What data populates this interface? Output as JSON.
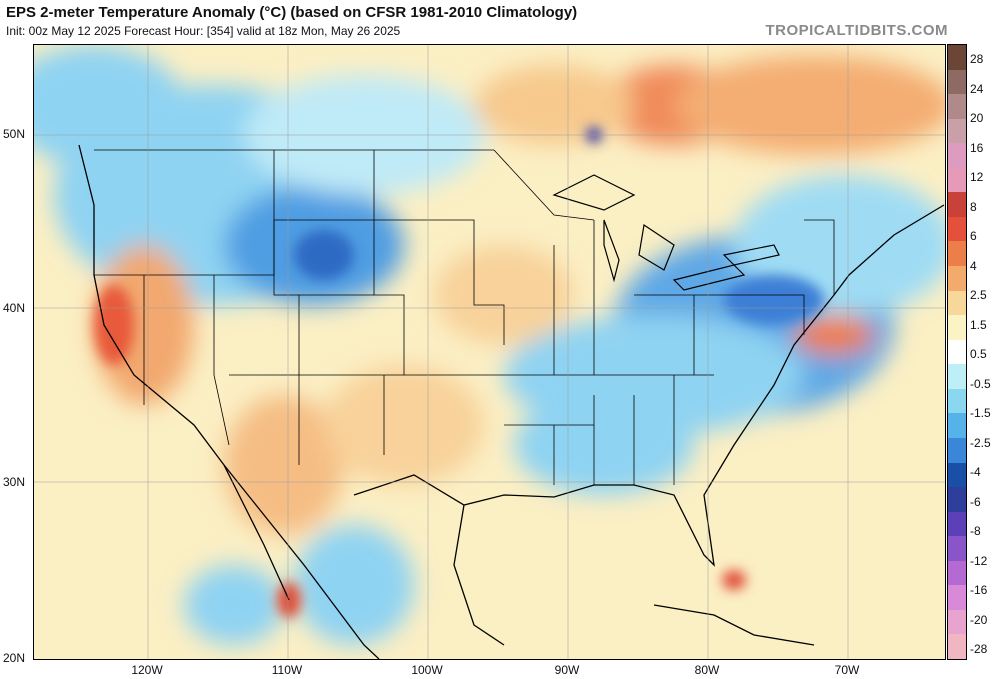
{
  "header": {
    "title": "EPS 2-meter Temperature Anomaly (°C) (based on CFSR 1981-2010 Climatology)",
    "subtitle": "Init: 00z May 12 2025   Forecast Hour: [354]   valid at 18z Mon, May 26 2025",
    "credit": "TROPICALTIDBITS.COM"
  },
  "map": {
    "lat_labels": [
      "50N",
      "40N",
      "30N",
      "20N"
    ],
    "lon_labels": [
      "120W",
      "110W",
      "100W",
      "90W",
      "80W",
      "70W"
    ]
  },
  "colorbar": {
    "labels": [
      "28",
      "24",
      "20",
      "16",
      "12",
      "8",
      "6",
      "4",
      "2.5",
      "1.5",
      "0.5",
      "-0.5",
      "-1.5",
      "-2.5",
      "-4",
      "-6",
      "-8",
      "-12",
      "-16",
      "-20",
      "-28"
    ],
    "colors": [
      "#6b4636",
      "#8d6a62",
      "#b08a8a",
      "#c9a0a8",
      "#dd9bbf",
      "#e59ab8",
      "#c9423a",
      "#e4503a",
      "#ec7e4a",
      "#f3ab6c",
      "#f8d89a",
      "#fbf3c4",
      "#ffffff",
      "#bfeff6",
      "#8ad8ef",
      "#56b3ea",
      "#3a86d8",
      "#1a4fa8",
      "#2d3f9a",
      "#5b40b8",
      "#8a55c8",
      "#b46ad2",
      "#d88ad8",
      "#e8a3cf",
      "#f0b7c2"
    ]
  }
}
